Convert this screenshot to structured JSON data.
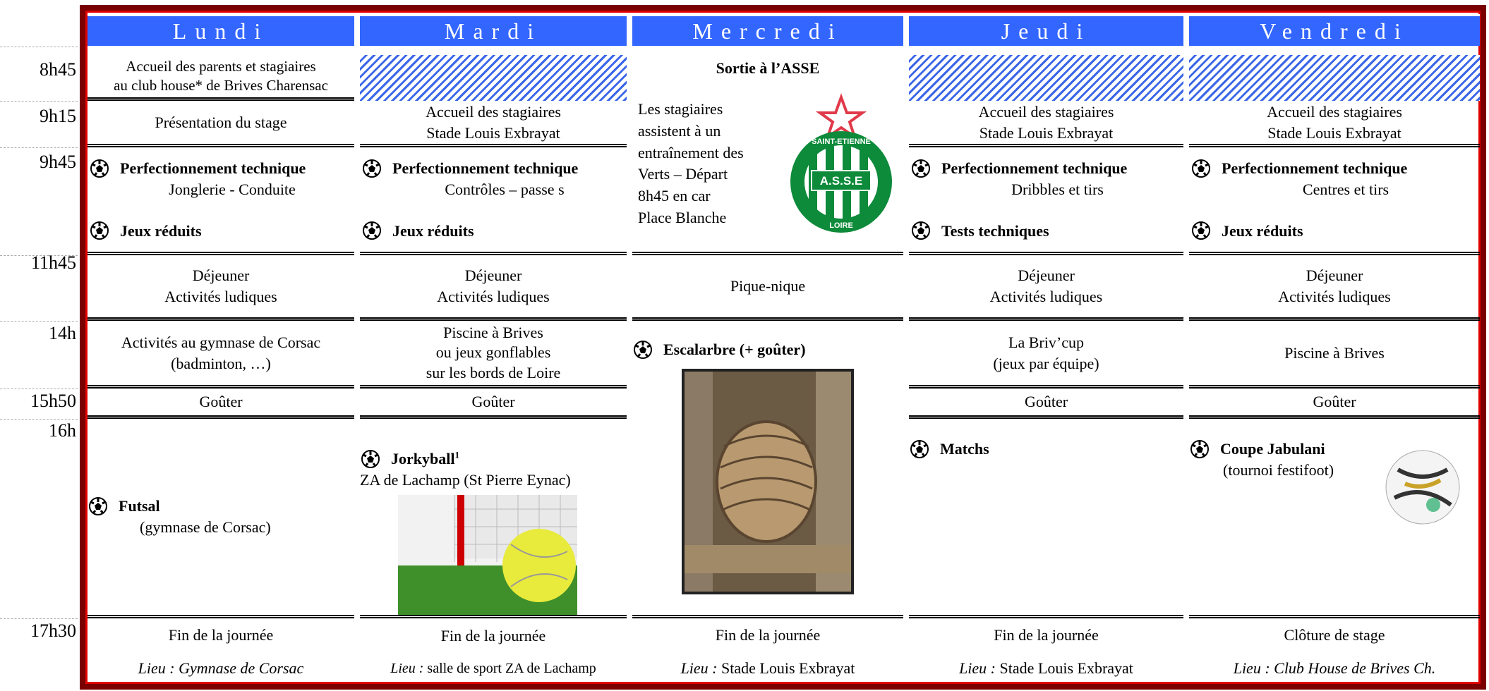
{
  "times": [
    "8h45",
    "9h15",
    "9h45",
    "11h45",
    "14h",
    "15h50",
    "16h",
    "17h30"
  ],
  "days": [
    "Lundi",
    "Mardi",
    "Mercredi",
    "Jeudi",
    "Vendredi"
  ],
  "lundi": {
    "arrival": [
      "Accueil des parents et stagiaires",
      "au club house* de Brives Charensac"
    ],
    "intro": "Présentation du stage",
    "session1": {
      "title": "Perfectionnement technique",
      "detail": "Jonglerie - Conduite"
    },
    "session2": "Jeux réduits",
    "lunch": [
      "Déjeuner",
      "Activités ludiques"
    ],
    "afternoon": [
      "Activités au gymnase de Corsac",
      "(badminton, …)"
    ],
    "snack": "Goûter",
    "evening": {
      "title": "Futsal",
      "detail": "(gymnase de Corsac)"
    },
    "end": "Fin de la journée",
    "place": "Lieu : Gymnase de Corsac"
  },
  "mardi": {
    "arrival": [
      "Accueil des stagiaires",
      "Stade Louis Exbrayat"
    ],
    "session1": {
      "title": "Perfectionnement technique",
      "detail": "Contrôles – passe s"
    },
    "session2": "Jeux réduits",
    "lunch": [
      "Déjeuner",
      "Activités ludiques"
    ],
    "afternoon": [
      "Piscine à Brives",
      "ou jeux gonflables",
      "sur les bords de Loire"
    ],
    "snack": "Goûter",
    "evening": {
      "title": "Jorkyball",
      "note": "1",
      "detail": "ZA de Lachamp (St Pierre Eynac)"
    },
    "end": "Fin de la journée",
    "place_label": "Lieu :",
    "place": "salle de sport ZA de Lachamp"
  },
  "mercredi": {
    "outing": "Sortie à l’ASSE",
    "description": [
      "Les stagiaires",
      "assistent à un",
      "entraînement des",
      "Verts – Départ",
      "8h45 en car",
      "Place Blanche"
    ],
    "logo": {
      "top": "SAINT-ETIENNE",
      "initials": "A.S.S.E",
      "bottom": "LOIRE"
    },
    "lunch": "Pique-nique",
    "afternoon": "Escalarbre (+ goûter)",
    "end": "Fin de la journée",
    "place_label": "Lieu :",
    "place": "Stade Louis Exbrayat"
  },
  "jeudi": {
    "arrival": [
      "Accueil des stagiaires",
      "Stade Louis Exbrayat"
    ],
    "session1": {
      "title": "Perfectionnement technique",
      "detail": "Dribbles et tirs"
    },
    "session2": "Tests techniques",
    "lunch": [
      "Déjeuner",
      "Activités ludiques"
    ],
    "afternoon": [
      "La Briv’cup",
      "(jeux par équipe)"
    ],
    "snack": "Goûter",
    "evening": "Matchs",
    "end": "Fin de la journée",
    "place_label": "Lieu :",
    "place": "Stade Louis Exbrayat"
  },
  "vendredi": {
    "arrival": [
      "Accueil des stagiaires",
      "Stade Louis Exbrayat"
    ],
    "session1": {
      "title": "Perfectionnement technique",
      "detail": "Centres et tirs"
    },
    "session2": "Jeux réduits",
    "lunch": [
      "Déjeuner",
      "Activités ludiques"
    ],
    "afternoon": "Piscine à Brives",
    "snack": "Goûter",
    "evening": {
      "title": "Coupe Jabulani",
      "detail": "(tournoi festifoot)"
    },
    "end": "Clôture de stage",
    "place": "Lieu : Club House de Brives Ch."
  }
}
